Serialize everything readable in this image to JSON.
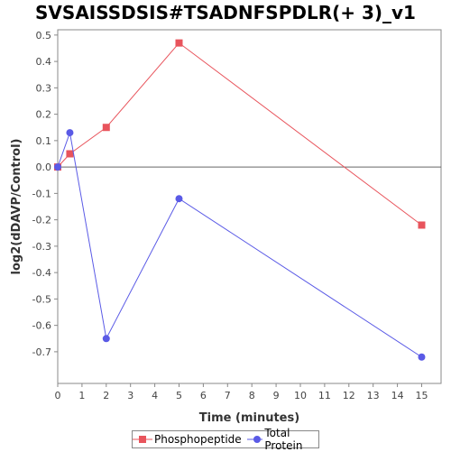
{
  "chart_data": {
    "type": "line",
    "title": "SVSAISSDSIS#TSADNFSPDLR(+ 3)_v1",
    "xlabel": "Time (minutes)",
    "ylabel": "log2(dDAVP/Control)",
    "xlim": [
      0,
      15.8
    ],
    "ylim": [
      -0.82,
      0.52
    ],
    "xticks": [
      0,
      1,
      2,
      3,
      4,
      5,
      6,
      7,
      8,
      9,
      10,
      11,
      12,
      13,
      14,
      15
    ],
    "yticks": [
      -0.7,
      -0.6,
      -0.5,
      -0.4,
      -0.3,
      -0.2,
      -0.1,
      0.0,
      0.1,
      0.2,
      0.3,
      0.4,
      0.5
    ],
    "zero_line": true,
    "legend_position": "bottom",
    "series": [
      {
        "name": "Phosphopeptide",
        "color": "#e8545c",
        "marker": "square",
        "x": [
          0,
          0.5,
          2,
          5,
          15
        ],
        "y": [
          0.0,
          0.05,
          0.15,
          0.47,
          -0.22
        ]
      },
      {
        "name": "Total Protein",
        "color": "#5a5ae6",
        "marker": "circle",
        "x": [
          0,
          0.5,
          2,
          5,
          15
        ],
        "y": [
          0.0,
          0.13,
          -0.65,
          -0.12,
          -0.72
        ]
      }
    ]
  }
}
